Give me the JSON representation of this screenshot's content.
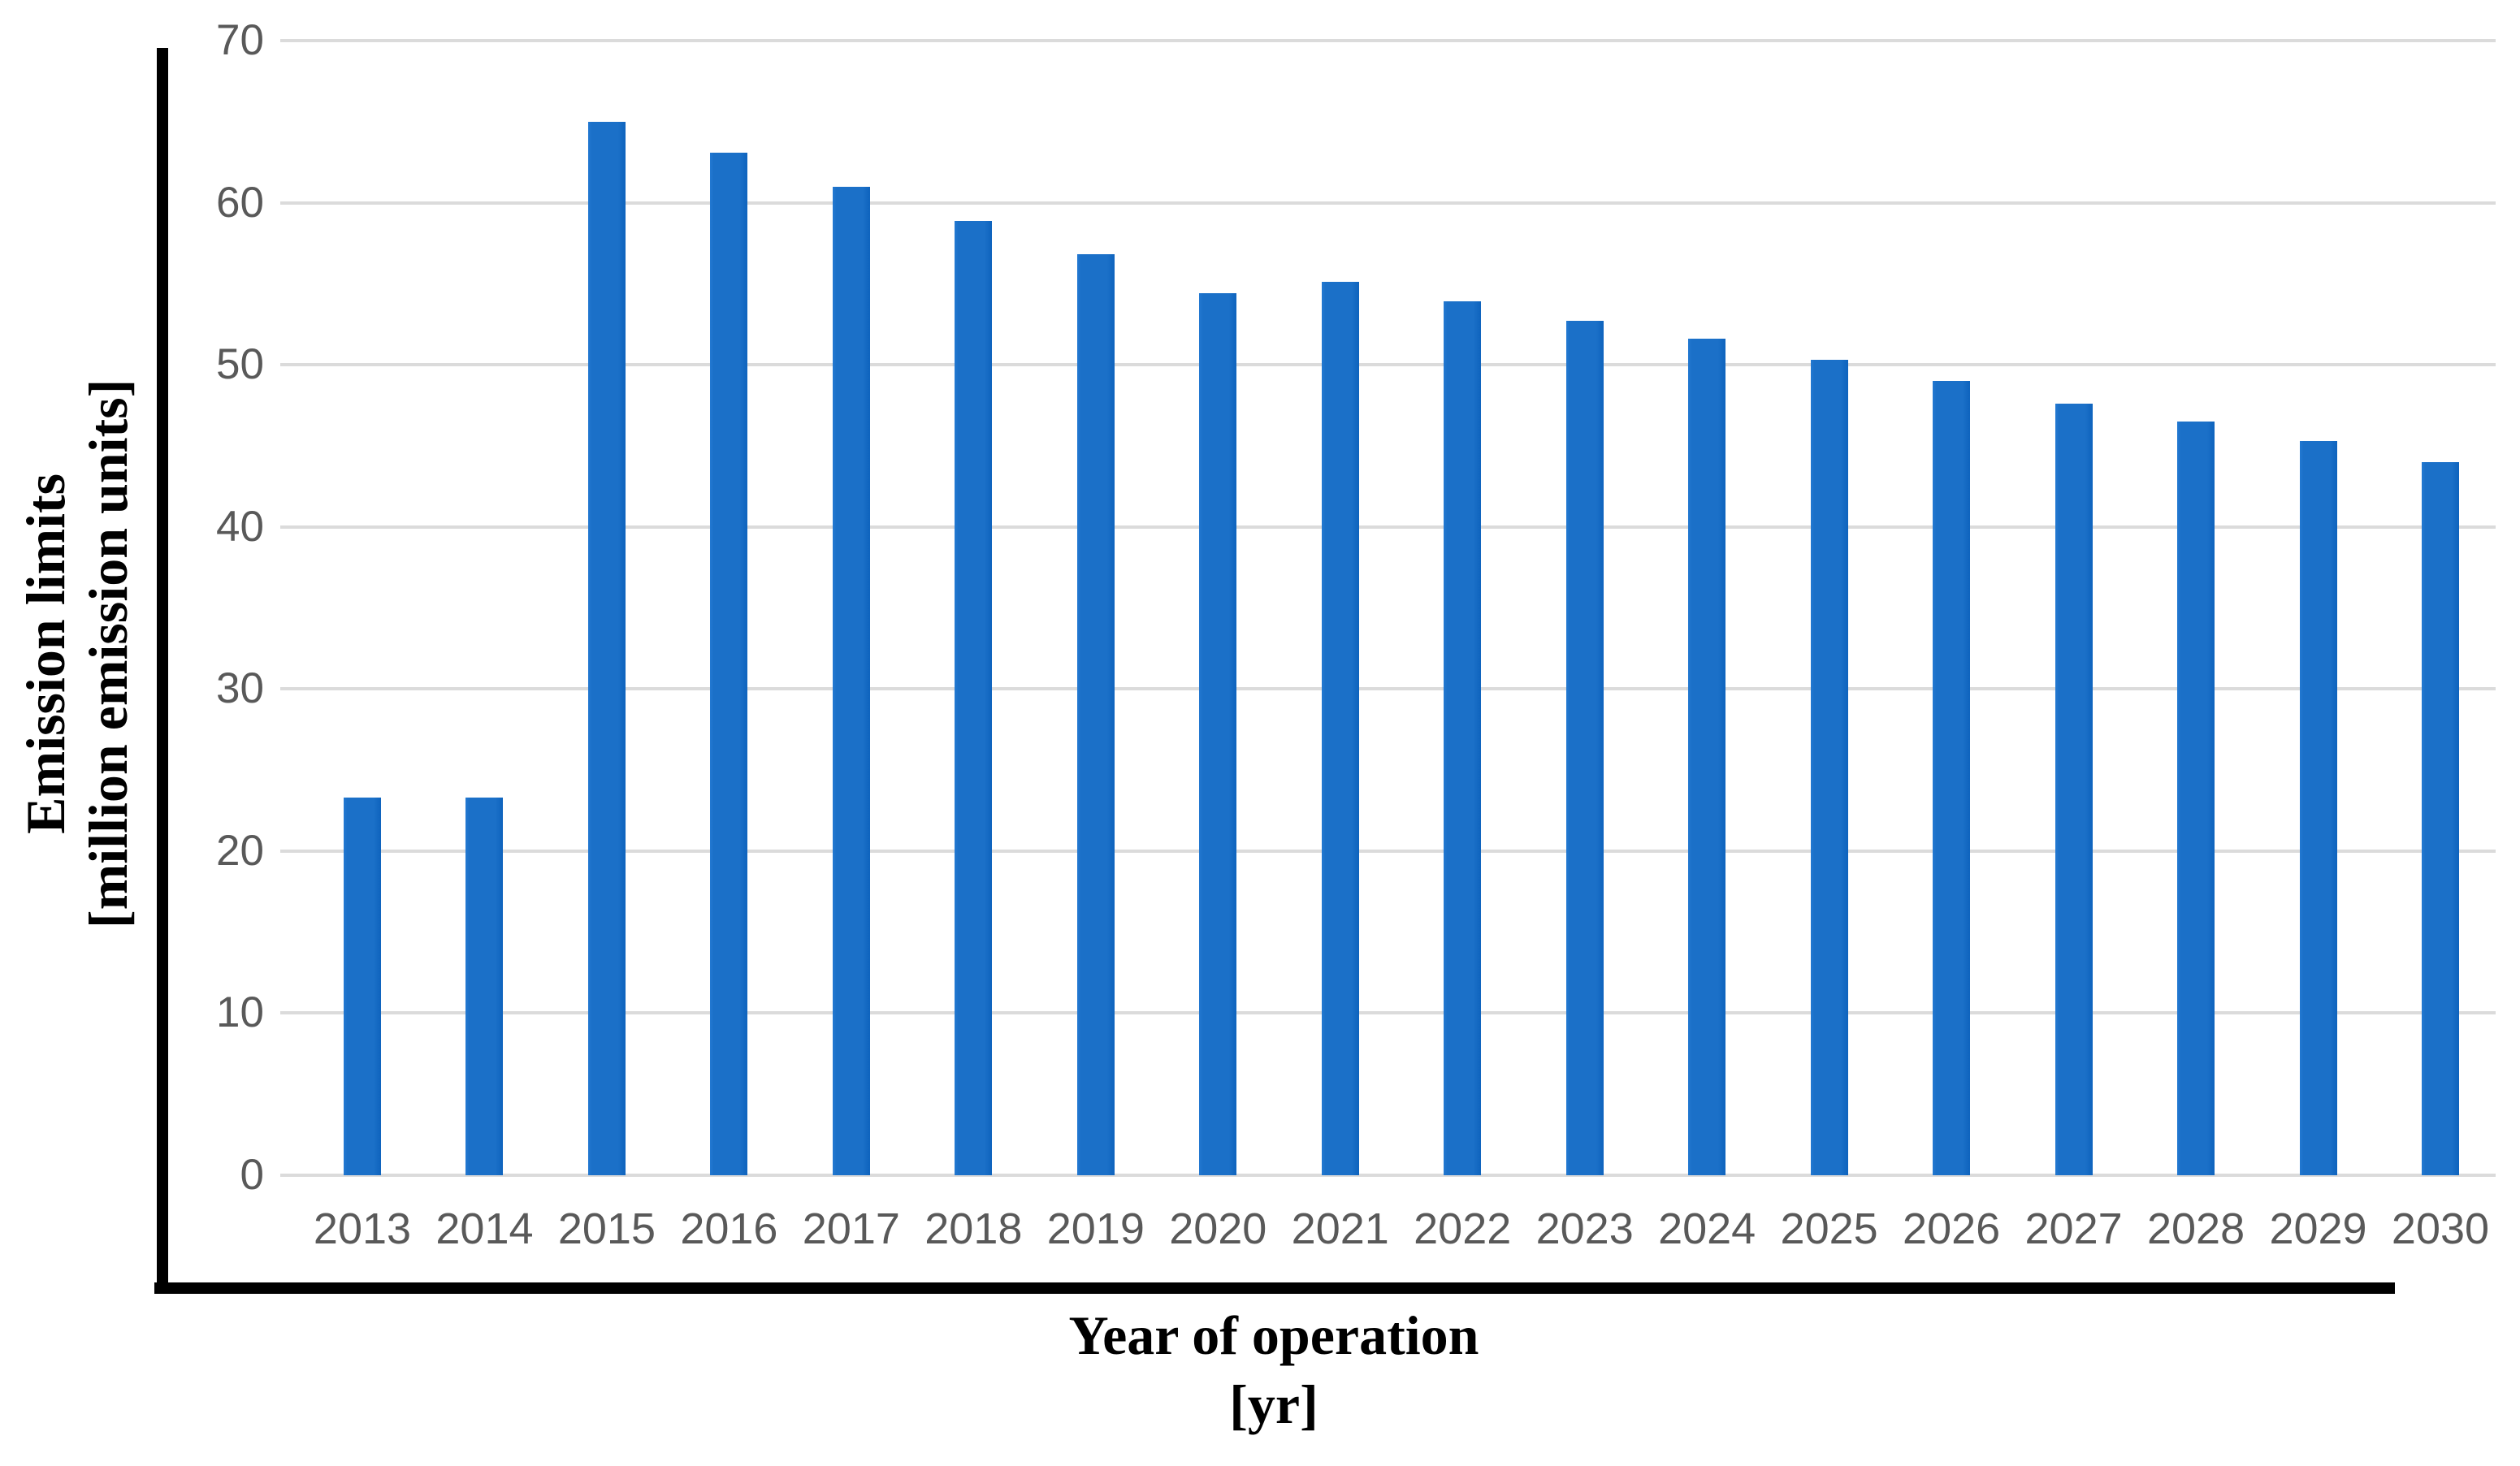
{
  "figure": {
    "background_color": "#ffffff"
  },
  "chart_data": {
    "type": "bar",
    "title": "",
    "xlabel": "Year of operation [yr]",
    "xlabel_line1": "Year of operation",
    "xlabel_line2": "[yr]",
    "ylabel": "Emission limits [million emission units]",
    "ylabel_line1": "Emission limits",
    "ylabel_line2": "[million emission units]",
    "categories": [
      "2013",
      "2014",
      "2015",
      "2016",
      "2017",
      "2018",
      "2019",
      "2020",
      "2021",
      "2022",
      "2023",
      "2024",
      "2025",
      "2026",
      "2027",
      "2028",
      "2029",
      "2030"
    ],
    "values": [
      23.3,
      23.3,
      65.0,
      63.1,
      61.0,
      58.9,
      56.8,
      54.4,
      55.1,
      53.9,
      52.7,
      51.6,
      50.3,
      49.0,
      47.6,
      46.5,
      45.3,
      44.0
    ],
    "ylim": [
      0,
      70
    ],
    "yticks": [
      0,
      10,
      20,
      30,
      40,
      50,
      60,
      70
    ],
    "grid": "horizontal",
    "legend": "none",
    "bar_color": "#1B70C8",
    "bar_edge_color": "#0E63BD",
    "gridline_color": "#DBDBDB",
    "tick_label_color": "#595959",
    "axis_line_color": "#000000"
  }
}
